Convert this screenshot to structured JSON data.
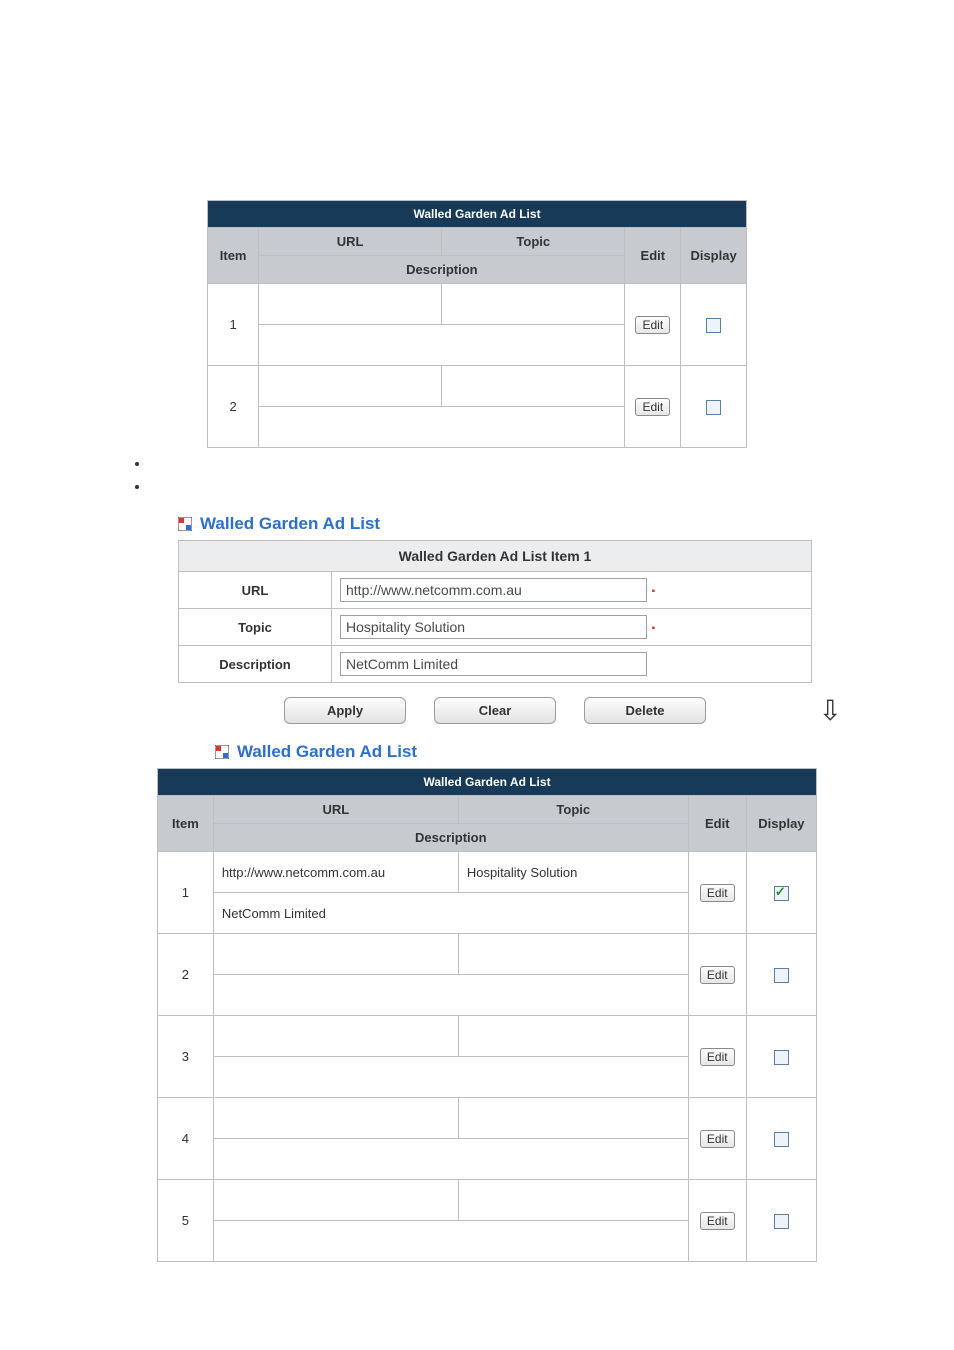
{
  "colors": {
    "title_bar_bg": "#163a57",
    "title_bar_fg": "#ffffff",
    "header_bg": "#c7cbcf",
    "border": "#bfbfbf",
    "link_blue": "#2a6fd6",
    "checkbox_border": "#5b7fa6",
    "check_green": "#2a8a2a"
  },
  "table1": {
    "title": "Walled Garden Ad List",
    "headers": {
      "item": "Item",
      "url": "URL",
      "topic": "Topic",
      "description": "Description",
      "edit": "Edit",
      "display": "Display"
    },
    "edit_label": "Edit",
    "rows": [
      {
        "item": "1",
        "url": "",
        "topic": "",
        "description": "",
        "display_checked": false
      },
      {
        "item": "2",
        "url": "",
        "topic": "",
        "description": "",
        "display_checked": false
      }
    ]
  },
  "heading1": "Walled Garden Ad List",
  "form": {
    "title": "Walled Garden Ad List Item 1",
    "labels": {
      "url": "URL",
      "topic": "Topic",
      "description": "Description"
    },
    "values": {
      "url": "http://www.netcomm.com.au",
      "topic": "Hospitality Solution",
      "description": "NetComm Limited"
    },
    "buttons": {
      "apply": "Apply",
      "clear": "Clear",
      "delete": "Delete"
    }
  },
  "heading2": "Walled Garden Ad List",
  "table2": {
    "title": "Walled Garden Ad List",
    "headers": {
      "item": "Item",
      "url": "URL",
      "topic": "Topic",
      "description": "Description",
      "edit": "Edit",
      "display": "Display"
    },
    "edit_label": "Edit",
    "rows": [
      {
        "item": "1",
        "url": "http://www.netcomm.com.au",
        "topic": "Hospitality Solution",
        "description": "NetComm Limited",
        "display_checked": true
      },
      {
        "item": "2",
        "url": "",
        "topic": "",
        "description": "",
        "display_checked": false
      },
      {
        "item": "3",
        "url": "",
        "topic": "",
        "description": "",
        "display_checked": false
      },
      {
        "item": "4",
        "url": "",
        "topic": "",
        "description": "",
        "display_checked": false
      },
      {
        "item": "5",
        "url": "",
        "topic": "",
        "description": "",
        "display_checked": false
      }
    ]
  }
}
